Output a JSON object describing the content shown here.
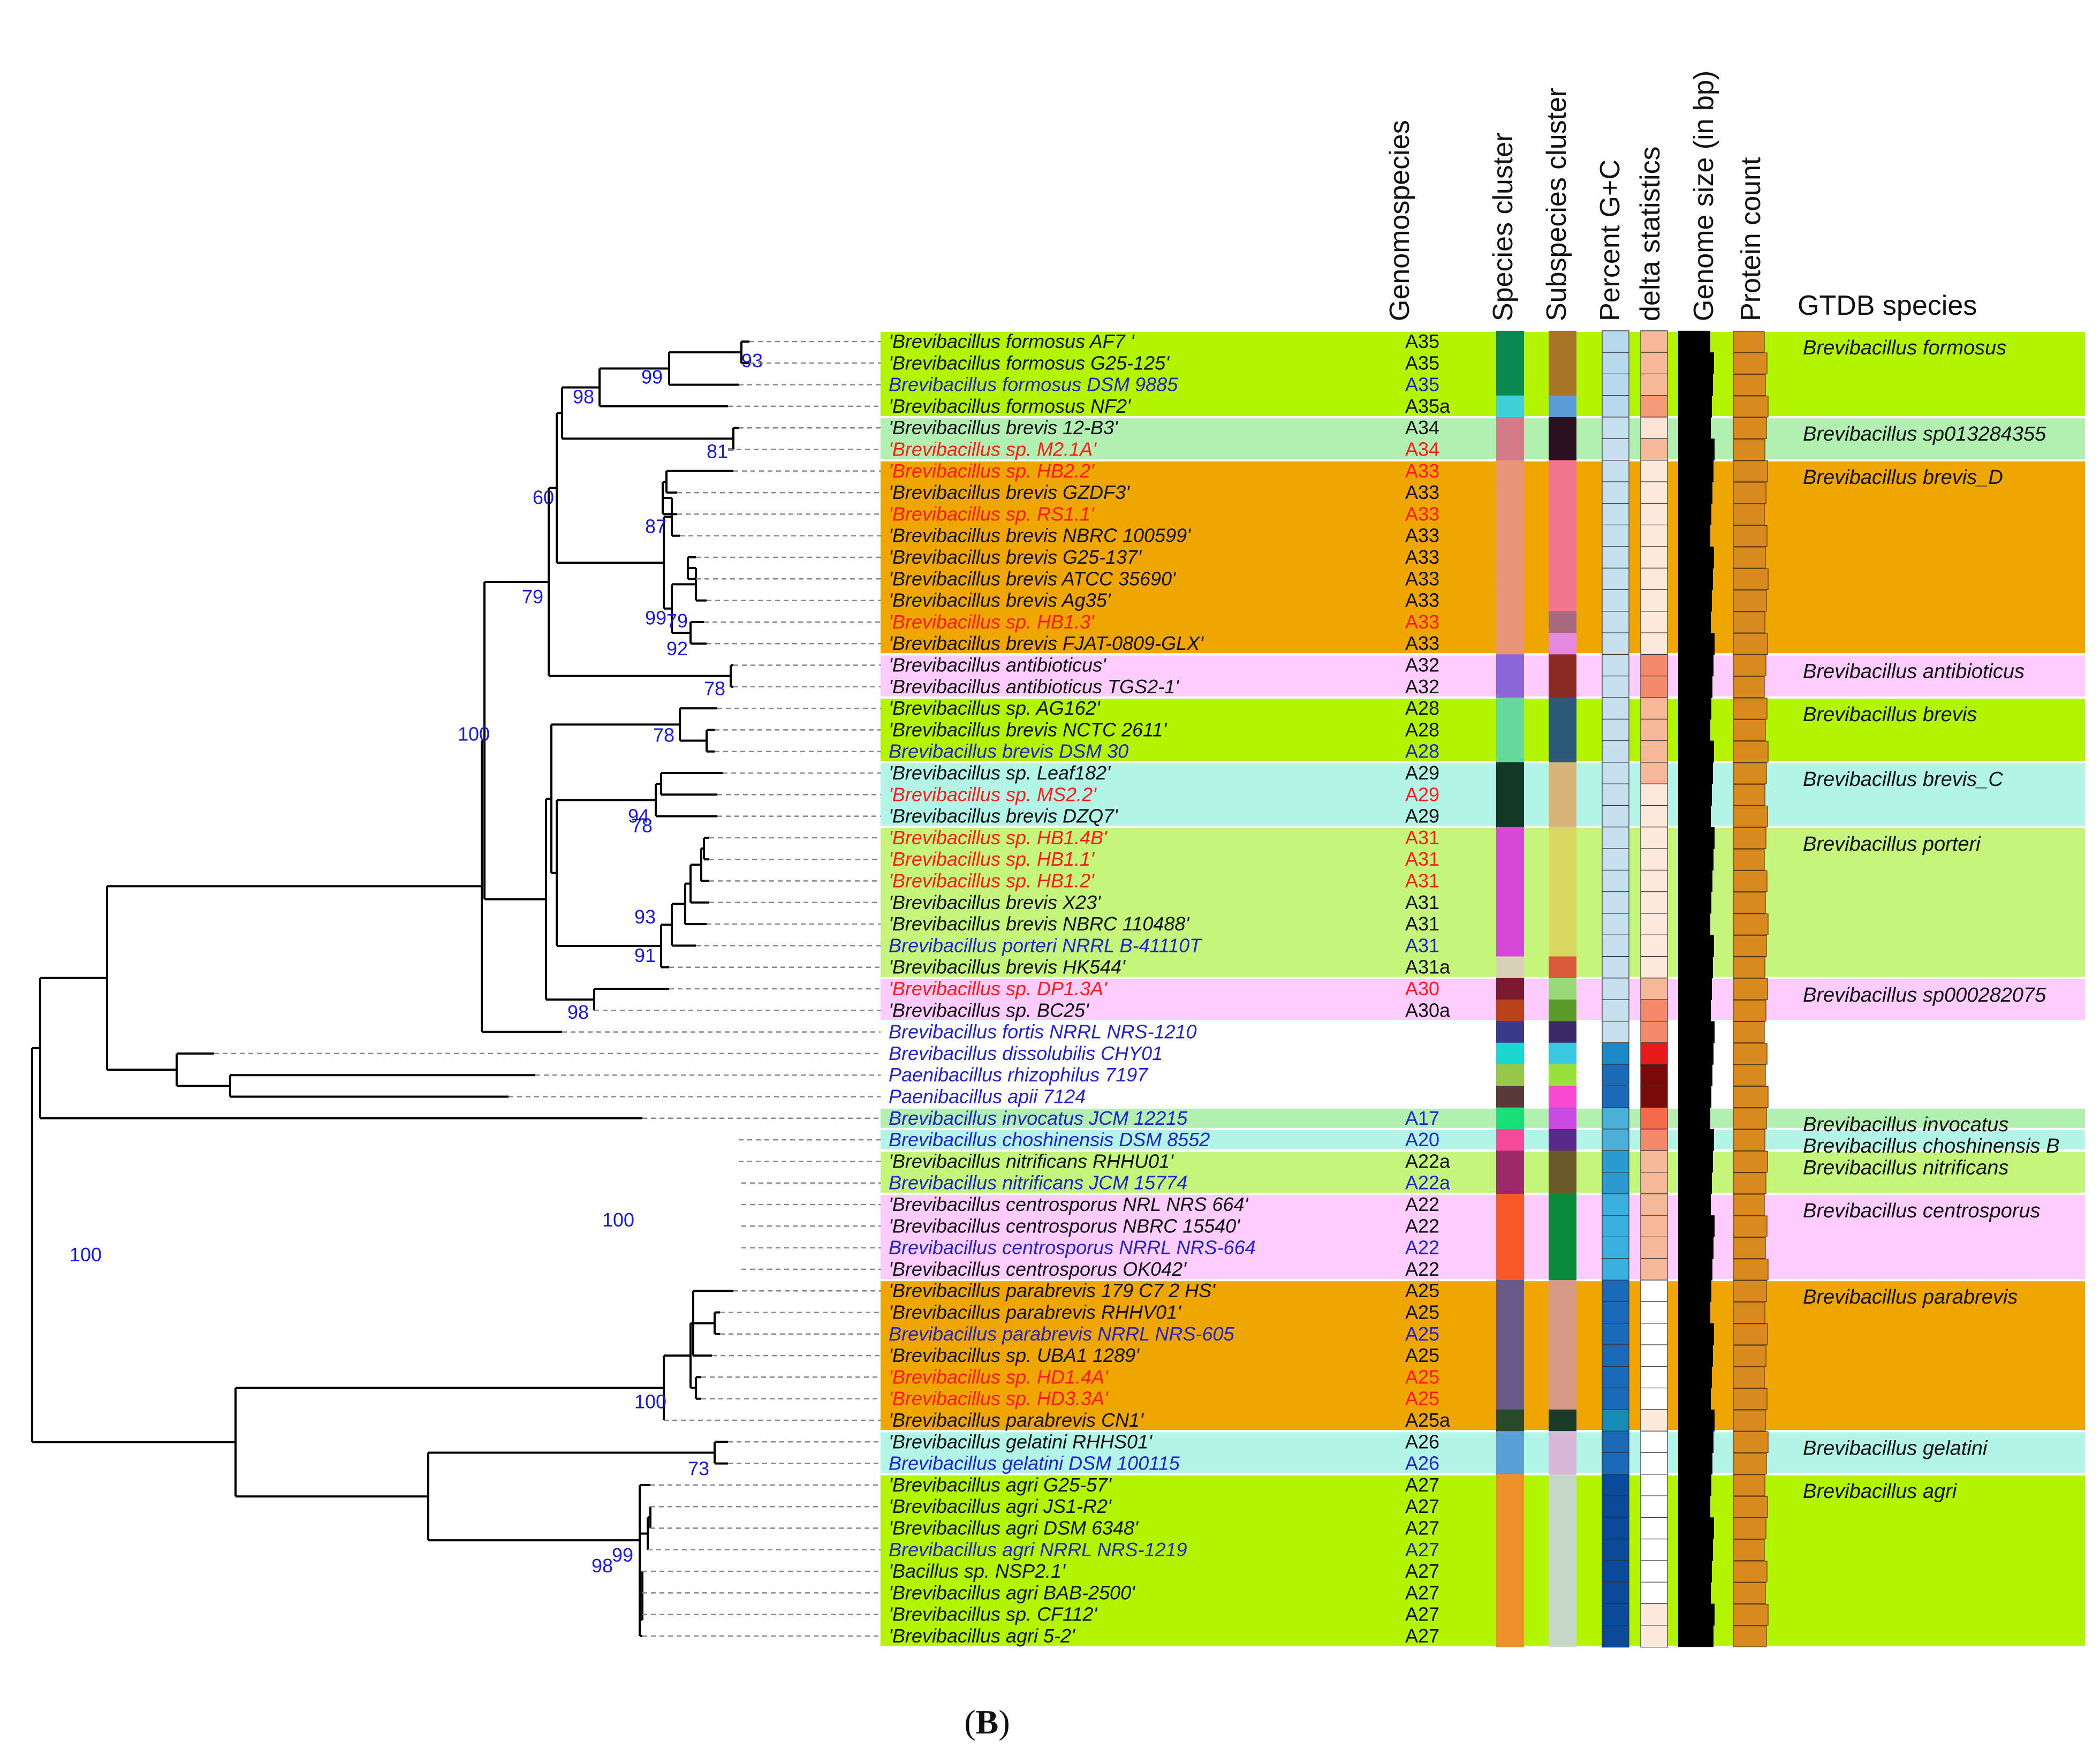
{
  "panel_label": "B",
  "columns": {
    "genomospecies": "Genomospecies",
    "species_cluster": "Species cluster",
    "subspecies_cluster": "Subspecies cluster",
    "gc": "Percent G+C",
    "delta": "delta statistics",
    "genome_size": "Genome size (in bp)",
    "protein_count": "Protein count",
    "gtdb": "GTDB species"
  },
  "colors": {
    "lime": "#b3f500",
    "lightgreen": "#b2f0b2",
    "orange": "#f0a600",
    "pink": "#ffccff",
    "aqua": "#b2f5e6",
    "green2": "#c5f57a",
    "name_black": "#111111",
    "name_blue": "#2222cc",
    "name_red": "#ff1a1a",
    "bootstrap": "#1a1ad6",
    "protein_bar": "#d98a1f",
    "genome_bar": "#000000"
  },
  "taxa": [
    {
      "name": "'Brevibacillus formosus AF7 '",
      "gs": "A35",
      "c": "black",
      "sp": "#0a8a50",
      "sub": "#a87426",
      "gc": "#b8d8ee",
      "d": "#f7b89a"
    },
    {
      "name": "'Brevibacillus formosus G25-125'",
      "gs": "A35",
      "c": "black",
      "sp": "#0a8a50",
      "sub": "#a87426",
      "gc": "#b8d8ee",
      "d": "#f7b89a"
    },
    {
      "name": "Brevibacillus formosus DSM 9885",
      "gs": "A35",
      "c": "blue",
      "sp": "#0a8a50",
      "sub": "#a87426",
      "gc": "#b8d8ee",
      "d": "#f7b89a"
    },
    {
      "name": "'Brevibacillus formosus NF2'",
      "gs": "A35a",
      "c": "black",
      "sp": "#3fd0d8",
      "sub": "#5b9bd8",
      "gc": "#b8d8ee",
      "d": "#f59a7a"
    },
    {
      "name": "'Brevibacillus brevis 12-B3'",
      "gs": "A34",
      "c": "black",
      "sp": "#d47a88",
      "sub": "#2a1020",
      "gc": "#c6e0f0",
      "d": "#fce4d8"
    },
    {
      "name": "'Brevibacillus sp. M2.1A'",
      "gs": "A34",
      "c": "red",
      "sp": "#d47a88",
      "sub": "#2a1020",
      "gc": "#c6e0f0",
      "d": "#f7b89a"
    },
    {
      "name": "'Brevibacillus sp. HB2.2'",
      "gs": "A33",
      "c": "red",
      "sp": "#e8957a",
      "sub": "#f27590",
      "gc": "#c6e0f0",
      "d": "#fde8dc"
    },
    {
      "name": "'Brevibacillus brevis GZDF3'",
      "gs": "A33",
      "c": "black",
      "sp": "#e8957a",
      "sub": "#f27590",
      "gc": "#c6e0f0",
      "d": "#fde8dc"
    },
    {
      "name": "'Brevibacillus sp. RS1.1'",
      "gs": "A33",
      "c": "red",
      "sp": "#e8957a",
      "sub": "#f27590",
      "gc": "#c6e0f0",
      "d": "#fde8dc"
    },
    {
      "name": "'Brevibacillus brevis NBRC 100599'",
      "gs": "A33",
      "c": "black",
      "sp": "#e8957a",
      "sub": "#f27590",
      "gc": "#c6e0f0",
      "d": "#fde8dc"
    },
    {
      "name": "'Brevibacillus brevis G25-137'",
      "gs": "A33",
      "c": "black",
      "sp": "#e8957a",
      "sub": "#f27590",
      "gc": "#c6e0f0",
      "d": "#fde8dc"
    },
    {
      "name": "'Brevibacillus brevis ATCC 35690'",
      "gs": "A33",
      "c": "black",
      "sp": "#e8957a",
      "sub": "#f27590",
      "gc": "#c6e0f0",
      "d": "#fde8dc"
    },
    {
      "name": "'Brevibacillus brevis Ag35'",
      "gs": "A33",
      "c": "black",
      "sp": "#e8957a",
      "sub": "#f27590",
      "gc": "#c6e0f0",
      "d": "#fde8dc"
    },
    {
      "name": "'Brevibacillus sp. HB1.3'",
      "gs": "A33",
      "c": "red",
      "sp": "#e8957a",
      "sub": "#a86a80",
      "gc": "#c6e0f0",
      "d": "#fde8dc"
    },
    {
      "name": "'Brevibacillus brevis FJAT-0809-GLX'",
      "gs": "A33",
      "c": "black",
      "sp": "#e8957a",
      "sub": "#e58ae0",
      "gc": "#c6e0f0",
      "d": "#fde8dc"
    },
    {
      "name": "'Brevibacillus antibioticus'",
      "gs": "A32",
      "c": "black",
      "sp": "#8a66d8",
      "sub": "#8a2a22",
      "gc": "#c6e0f0",
      "d": "#f58a6a"
    },
    {
      "name": "'Brevibacillus antibioticus TGS2-1'",
      "gs": "A32",
      "c": "black",
      "sp": "#8a66d8",
      "sub": "#8a2a22",
      "gc": "#c6e0f0",
      "d": "#f58a6a"
    },
    {
      "name": "'Brevibacillus sp. AG162'",
      "gs": "A28",
      "c": "black",
      "sp": "#66d89a",
      "sub": "#2a5a78",
      "gc": "#c6e0f0",
      "d": "#f7b89a"
    },
    {
      "name": "'Brevibacillus brevis NCTC 2611'",
      "gs": "A28",
      "c": "black",
      "sp": "#66d89a",
      "sub": "#2a5a78",
      "gc": "#c6e0f0",
      "d": "#f7b89a"
    },
    {
      "name": "Brevibacillus brevis DSM 30",
      "gs": "A28",
      "c": "blue",
      "sp": "#66d89a",
      "sub": "#2a5a78",
      "gc": "#c6e0f0",
      "d": "#f7b89a"
    },
    {
      "name": "'Brevibacillus sp. Leaf182'",
      "gs": "A29",
      "c": "black",
      "sp": "#143828",
      "sub": "#d8b47a",
      "gc": "#c6e0f0",
      "d": "#f7b89a"
    },
    {
      "name": "'Brevibacillus sp. MS2.2'",
      "gs": "A29",
      "c": "red",
      "sp": "#143828",
      "sub": "#d8b47a",
      "gc": "#c6e0f0",
      "d": "#fde8dc"
    },
    {
      "name": "'Brevibacillus brevis DZQ7'",
      "gs": "A29",
      "c": "black",
      "sp": "#143828",
      "sub": "#d8b47a",
      "gc": "#c6e0f0",
      "d": "#fde8dc"
    },
    {
      "name": "'Brevibacillus sp. HB1.4B'",
      "gs": "A31",
      "c": "red",
      "sp": "#d848d8",
      "sub": "#d8d860",
      "gc": "#c6e0f0",
      "d": "#fde8dc"
    },
    {
      "name": "'Brevibacillus sp. HB1.1'",
      "gs": "A31",
      "c": "red",
      "sp": "#d848d8",
      "sub": "#d8d860",
      "gc": "#c6e0f0",
      "d": "#fde8dc"
    },
    {
      "name": "'Brevibacillus sp. HB1.2'",
      "gs": "A31",
      "c": "red",
      "sp": "#d848d8",
      "sub": "#d8d860",
      "gc": "#c6e0f0",
      "d": "#fde8dc"
    },
    {
      "name": "'Brevibacillus brevis X23'",
      "gs": "A31",
      "c": "black",
      "sp": "#d848d8",
      "sub": "#d8d860",
      "gc": "#c6e0f0",
      "d": "#fde8dc"
    },
    {
      "name": "'Brevibacillus brevis NBRC 110488'",
      "gs": "A31",
      "c": "black",
      "sp": "#d848d8",
      "sub": "#d8d860",
      "gc": "#c6e0f0",
      "d": "#fde8dc"
    },
    {
      "name": "Brevibacillus porteri NRRL B-41110T",
      "gs": "A31",
      "c": "blue",
      "sp": "#d848d8",
      "sub": "#d8d860",
      "gc": "#c6e0f0",
      "d": "#fde8dc"
    },
    {
      "name": "'Brevibacillus brevis HK544'",
      "gs": "A31a",
      "c": "black",
      "sp": "#d8d0b8",
      "sub": "#d85a3a",
      "gc": "#c6e0f0",
      "d": "#fde8dc"
    },
    {
      "name": "'Brevibacillus sp. DP1.3A'",
      "gs": "A30",
      "c": "red",
      "sp": "#7a1a30",
      "sub": "#98d878",
      "gc": "#c6e0f0",
      "d": "#f7b89a"
    },
    {
      "name": "'Brevibacillus sp. BC25'",
      "gs": "A30a",
      "c": "black",
      "sp": "#b8421a",
      "sub": "#5a9a2a",
      "gc": "#c6e0f0",
      "d": "#f58a6a"
    },
    {
      "name": "Brevibacillus fortis NRRL NRS-1210",
      "gs": "",
      "c": "blue",
      "sp": "#3a3a8a",
      "sub": "#3a2a68",
      "gc": "#c6e0f0",
      "d": "#f58a6a"
    },
    {
      "name": "Brevibacillus dissolubilis CHY01",
      "gs": "",
      "c": "blue",
      "sp": "#1ad8d0",
      "sub": "#3ac8e0",
      "gc": "#1a8ac8",
      "d": "#e81a1a"
    },
    {
      "name": "Paenibacillus rhizophilus 7197",
      "gs": "",
      "c": "blue",
      "sp": "#98c84a",
      "sub": "#98e03a",
      "gc": "#1a6ab8",
      "d": "#7a0a0a"
    },
    {
      "name": "Paenibacillus apii 7124",
      "gs": "",
      "c": "blue",
      "sp": "#5a3a38",
      "sub": "#f84ad0",
      "gc": "#1a6ab8",
      "d": "#7a0a0a"
    },
    {
      "name": "Brevibacillus invocatus JCM 12215",
      "gs": "A17",
      "c": "blue",
      "sp": "#1ae07a",
      "sub": "#c84ae0",
      "gc": "#4ab0d8",
      "d": "#f56a4a"
    },
    {
      "name": "Brevibacillus choshinensis DSM 8552",
      "gs": "A20",
      "c": "blue",
      "sp": "#f84a9a",
      "sub": "#5a2a8a",
      "gc": "#4ab0d8",
      "d": "#f58a6a"
    },
    {
      "name": "'Brevibacillus nitrificans RHHU01'",
      "gs": "A22a",
      "c": "black",
      "sp": "#9a2a6a",
      "sub": "#6a5a2a",
      "gc": "#2a9ad0",
      "d": "#f7b89a"
    },
    {
      "name": "Brevibacillus nitrificans JCM 15774",
      "gs": "A22a",
      "c": "blue",
      "sp": "#9a2a6a",
      "sub": "#6a5a2a",
      "gc": "#2a9ad0",
      "d": "#f7b89a"
    },
    {
      "name": "'Brevibacillus centrosporus NRL NRS 664'",
      "gs": "A22",
      "c": "black",
      "sp": "#f8582a",
      "sub": "#0a8a3a",
      "gc": "#3ab0e0",
      "d": "#f7b89a"
    },
    {
      "name": "'Brevibacillus centrosporus NBRC 15540'",
      "gs": "A22",
      "c": "black",
      "sp": "#f8582a",
      "sub": "#0a8a3a",
      "gc": "#3ab0e0",
      "d": "#f7b89a"
    },
    {
      "name": "Brevibacillus centrosporus NRRL NRS-664",
      "gs": "A22",
      "c": "blue",
      "sp": "#f8582a",
      "sub": "#0a8a3a",
      "gc": "#3ab0e0",
      "d": "#f7b89a"
    },
    {
      "name": "'Brevibacillus centrosporus OK042'",
      "gs": "A22",
      "c": "black",
      "sp": "#f8582a",
      "sub": "#0a8a3a",
      "gc": "#3ab0e0",
      "d": "#f7b89a"
    },
    {
      "name": "'Brevibacillus parabrevis 179 C7 2 HS'",
      "gs": "A25",
      "c": "black",
      "sp": "#6a5a8a",
      "sub": "#d89a88",
      "gc": "#1a6ab8",
      "d": "#ffffff"
    },
    {
      "name": "'Brevibacillus parabrevis RHHV01'",
      "gs": "A25",
      "c": "black",
      "sp": "#6a5a8a",
      "sub": "#d89a88",
      "gc": "#1a6ab8",
      "d": "#ffffff"
    },
    {
      "name": "Brevibacillus parabrevis NRRL NRS-605",
      "gs": "A25",
      "c": "blue",
      "sp": "#6a5a8a",
      "sub": "#d89a88",
      "gc": "#1a6ab8",
      "d": "#ffffff"
    },
    {
      "name": "'Brevibacillus sp. UBA1 1289'",
      "gs": "A25",
      "c": "black",
      "sp": "#6a5a8a",
      "sub": "#d89a88",
      "gc": "#1a6ab8",
      "d": "#ffffff"
    },
    {
      "name": "'Brevibacillus sp. HD1.4A'",
      "gs": "A25",
      "c": "red",
      "sp": "#6a5a8a",
      "sub": "#d89a88",
      "gc": "#1a6ab8",
      "d": "#ffffff"
    },
    {
      "name": "'Brevibacillus sp. HD3.3A'",
      "gs": "A25",
      "c": "red",
      "sp": "#6a5a8a",
      "sub": "#d89a88",
      "gc": "#1a6ab8",
      "d": "#ffffff"
    },
    {
      "name": "'Brevibacillus parabrevis CN1'",
      "gs": "A25a",
      "c": "black",
      "sp": "#2a4a2a",
      "sub": "#1a3a2a",
      "gc": "#1a8ab8",
      "d": "#fde8dc"
    },
    {
      "name": "'Brevibacillus gelatini RHHS01'",
      "gs": "A26",
      "c": "black",
      "sp": "#5aa0d8",
      "sub": "#d8b8d8",
      "gc": "#1a6ab8",
      "d": "#ffffff"
    },
    {
      "name": "Brevibacillus gelatini DSM 100115",
      "gs": "A26",
      "c": "blue",
      "sp": "#5aa0d8",
      "sub": "#d8b8d8",
      "gc": "#1a6ab8",
      "d": "#ffffff"
    },
    {
      "name": "'Brevibacillus agri G25-57'",
      "gs": "A27",
      "c": "black",
      "sp": "#f0902a",
      "sub": "#c8d8c8",
      "gc": "#0a4a98",
      "d": "#ffffff"
    },
    {
      "name": "'Brevibacillus agri JS1-R2'",
      "gs": "A27",
      "c": "black",
      "sp": "#f0902a",
      "sub": "#c8d8c8",
      "gc": "#0a4a98",
      "d": "#ffffff"
    },
    {
      "name": "'Brevibacillus agri DSM 6348'",
      "gs": "A27",
      "c": "black",
      "sp": "#f0902a",
      "sub": "#c8d8c8",
      "gc": "#0a4a98",
      "d": "#ffffff"
    },
    {
      "name": "Brevibacillus agri NRRL NRS-1219",
      "gs": "A27",
      "c": "blue",
      "sp": "#f0902a",
      "sub": "#c8d8c8",
      "gc": "#0a4a98",
      "d": "#ffffff"
    },
    {
      "name": "'Bacillus sp. NSP2.1'",
      "gs": "A27",
      "c": "black",
      "sp": "#f0902a",
      "sub": "#c8d8c8",
      "gc": "#0a4a98",
      "d": "#ffffff"
    },
    {
      "name": "'Brevibacillus agri BAB-2500'",
      "gs": "A27",
      "c": "black",
      "sp": "#f0902a",
      "sub": "#c8d8c8",
      "gc": "#0a4a98",
      "d": "#ffffff"
    },
    {
      "name": "'Brevibacillus sp. CF112'",
      "gs": "A27",
      "c": "black",
      "sp": "#f0902a",
      "sub": "#c8d8c8",
      "gc": "#0a4a98",
      "d": "#fde8dc"
    },
    {
      "name": "'Brevibacillus agri 5-2'",
      "gs": "A27",
      "c": "black",
      "sp": "#f0902a",
      "sub": "#c8d8c8",
      "gc": "#0a4a98",
      "d": "#fde8dc"
    }
  ],
  "bands": [
    {
      "from": 0,
      "to": 3,
      "color": "lime",
      "gtdb": "Brevibacillus formosus"
    },
    {
      "from": 4,
      "to": 5,
      "color": "lightgreen",
      "gtdb": "Brevibacillus sp013284355"
    },
    {
      "from": 6,
      "to": 14,
      "color": "orange",
      "gtdb": "Brevibacillus brevis_D"
    },
    {
      "from": 15,
      "to": 16,
      "color": "pink",
      "gtdb": "Brevibacillus antibioticus"
    },
    {
      "from": 17,
      "to": 19,
      "color": "lime",
      "gtdb": "Brevibacillus brevis"
    },
    {
      "from": 20,
      "to": 22,
      "color": "aqua",
      "gtdb": "Brevibacillus brevis_C"
    },
    {
      "from": 23,
      "to": 29,
      "color": "green2",
      "gtdb": "Brevibacillus porteri"
    },
    {
      "from": 30,
      "to": 31,
      "color": "pink",
      "gtdb": "Brevibacillus sp000282075"
    },
    {
      "from": 36,
      "to": 36,
      "color": "lightgreen",
      "gtdb": "Brevibacillus invocatus"
    },
    {
      "from": 37,
      "to": 37,
      "color": "aqua",
      "gtdb": "Brevibacillus choshinensis B"
    },
    {
      "from": 38,
      "to": 39,
      "color": "green2",
      "gtdb": "Brevibacillus nitrificans"
    },
    {
      "from": 40,
      "to": 43,
      "color": "pink",
      "gtdb": "Brevibacillus centrosporus"
    },
    {
      "from": 44,
      "to": 50,
      "color": "orange",
      "gtdb": "Brevibacillus parabrevis"
    },
    {
      "from": 51,
      "to": 52,
      "color": "aqua",
      "gtdb": "Brevibacillus gelatini"
    },
    {
      "from": 53,
      "to": 60,
      "color": "lime",
      "gtdb": "Brevibacillus agri"
    }
  ],
  "tree": {
    "edges": [
      [
        0,
        "R"
      ],
      [
        1,
        "R"
      ],
      [
        2,
        "R"
      ],
      [
        3,
        "R"
      ],
      [
        4,
        "R"
      ],
      [
        5,
        "R"
      ],
      [
        6,
        "R"
      ],
      [
        7,
        "R"
      ],
      [
        8,
        "R"
      ],
      [
        9,
        "R"
      ],
      [
        10,
        "R"
      ],
      [
        11,
        "R"
      ],
      [
        12,
        "R"
      ],
      [
        13,
        "R"
      ],
      [
        14,
        "R"
      ],
      [
        15,
        "R"
      ],
      [
        16,
        "R"
      ],
      [
        17,
        "R"
      ],
      [
        18,
        "R"
      ],
      [
        19,
        "R"
      ],
      [
        20,
        "R"
      ],
      [
        21,
        "R"
      ],
      [
        22,
        "R"
      ],
      [
        23,
        "R"
      ],
      [
        24,
        "R"
      ],
      [
        25,
        "R"
      ],
      [
        26,
        "R"
      ],
      [
        27,
        "R"
      ],
      [
        28,
        "R"
      ],
      [
        29,
        "R"
      ],
      [
        30,
        "R"
      ],
      [
        31,
        "R"
      ],
      [
        32,
        "R"
      ],
      [
        33,
        "R"
      ],
      [
        34,
        "R"
      ],
      [
        35,
        "R"
      ],
      [
        36,
        "R"
      ],
      [
        37,
        "R"
      ],
      [
        38,
        "R"
      ],
      [
        39,
        "R"
      ],
      [
        40,
        "R"
      ],
      [
        41,
        "R"
      ],
      [
        42,
        "R"
      ],
      [
        43,
        "R"
      ],
      [
        44,
        "R"
      ],
      [
        45,
        "R"
      ],
      [
        46,
        "R"
      ],
      [
        47,
        "R"
      ],
      [
        48,
        "R"
      ],
      [
        49,
        "R"
      ],
      [
        50,
        "R"
      ],
      [
        51,
        "R"
      ],
      [
        52,
        "R"
      ],
      [
        53,
        "R"
      ],
      [
        54,
        "R"
      ],
      [
        55,
        "R"
      ],
      [
        56,
        "R"
      ],
      [
        57,
        "R"
      ],
      [
        58,
        "R"
      ],
      [
        59,
        "R"
      ],
      [
        60,
        "R"
      ]
    ],
    "bootstrap": [
      "93",
      "99",
      "98",
      "81",
      "87",
      "60",
      "99",
      "79",
      "92",
      "78",
      "79",
      "78",
      "94",
      "78",
      "93",
      "91",
      "100",
      "98",
      "100",
      "100",
      "73",
      "100",
      "98",
      "99"
    ]
  }
}
